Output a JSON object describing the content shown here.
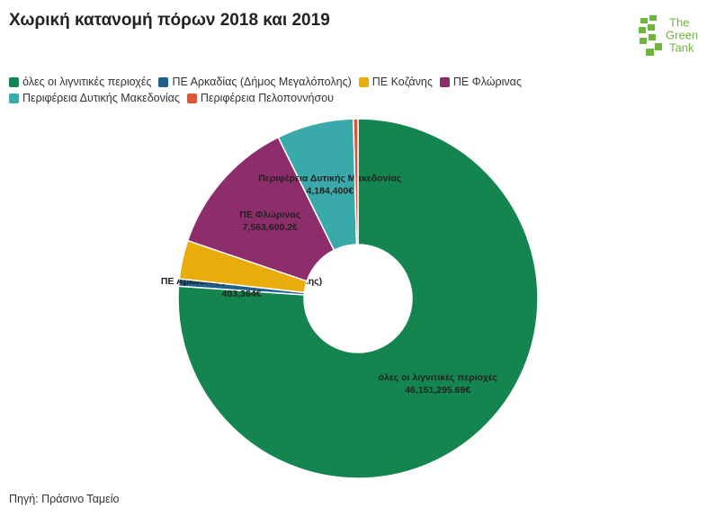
{
  "chart_data": {
    "type": "donut",
    "title": "Χωρική κατανομή πόρων 2018 και 2019",
    "categories": [
      "όλες οι λιγνιτικές περιοχές",
      "ΠΕ Αρκαδίας (Δήμος Μεγαλόπολης)",
      "ΠΕ Κοζάνης",
      "ΠΕ Φλώρινας",
      "Περιφέρεια Δυτικής Μακεδονίας",
      "Περιφέρεια Πελοποννήσου"
    ],
    "values": [
      46151295.69,
      403364,
      2100000,
      7563600.2,
      4184400,
      250000
    ],
    "value_labels": [
      "46,151,295.69€",
      "403,364€",
      null,
      "7,563,600.2€",
      "4,184,400€",
      null
    ],
    "colors": [
      "#14854f",
      "#1f5f8b",
      "#e8ad0b",
      "#8e2d6b",
      "#3aa9a9",
      "#d9573b"
    ],
    "legend": "top-left",
    "source": "Πηγή: Πράσινο Ταμείο"
  },
  "logo": {
    "lines": [
      "The",
      "Green",
      "Tank"
    ]
  }
}
